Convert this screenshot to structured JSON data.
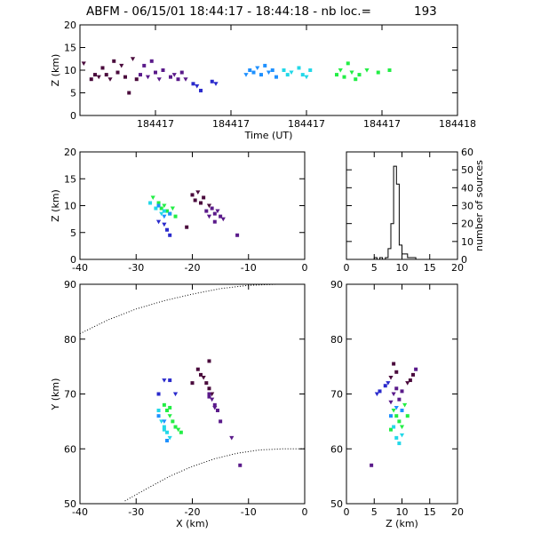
{
  "title": "ABFM - 06/15/01 18:44:17 - 18:44:18 - nb loc.=",
  "nb_loc": "193",
  "colors": {
    "dark_purple": "#4a0a3c",
    "purple": "#5a1a8a",
    "blue": "#2a2acc",
    "light_blue": "#1e90ff",
    "cyan": "#22d8e8",
    "green": "#22ee44",
    "outline": "#000000"
  },
  "chart_data": [
    {
      "id": "time-height",
      "type": "scatter",
      "xlabel": "Time (UT)",
      "ylabel": "Z (km)",
      "xlim": [
        0,
        1
      ],
      "ylim": [
        0,
        20
      ],
      "x_ticks": [
        0.2,
        0.4,
        0.6,
        0.8,
        1.0
      ],
      "x_tick_labels": [
        "184417",
        "184417",
        "184417",
        "184417",
        "184418"
      ],
      "y_ticks": [
        0,
        5,
        10,
        15,
        20
      ],
      "y_tick_labels": [
        "0",
        "5",
        "10",
        "15",
        "20"
      ],
      "series": [
        {
          "color": "#4a0a3c",
          "points": [
            [
              0.01,
              11.5
            ],
            [
              0.03,
              8
            ],
            [
              0.04,
              9
            ],
            [
              0.05,
              8.5
            ],
            [
              0.06,
              10.5
            ],
            [
              0.07,
              9
            ],
            [
              0.08,
              8
            ],
            [
              0.09,
              12
            ],
            [
              0.1,
              9.5
            ],
            [
              0.11,
              11
            ],
            [
              0.12,
              8.5
            ],
            [
              0.13,
              5
            ],
            [
              0.14,
              12.5
            ],
            [
              0.15,
              8
            ]
          ]
        },
        {
          "color": "#5a1a8a",
          "points": [
            [
              0.16,
              9
            ],
            [
              0.17,
              11
            ],
            [
              0.18,
              8.5
            ],
            [
              0.19,
              12
            ],
            [
              0.2,
              9.5
            ],
            [
              0.21,
              8
            ],
            [
              0.22,
              10
            ],
            [
              0.24,
              8.5
            ],
            [
              0.25,
              9
            ],
            [
              0.26,
              8
            ],
            [
              0.27,
              9.5
            ],
            [
              0.28,
              8
            ]
          ]
        },
        {
          "color": "#2a2acc",
          "points": [
            [
              0.3,
              7
            ],
            [
              0.31,
              6.5
            ],
            [
              0.32,
              5.5
            ],
            [
              0.35,
              7.5
            ],
            [
              0.36,
              7
            ]
          ]
        },
        {
          "color": "#1e90ff",
          "points": [
            [
              0.44,
              9
            ],
            [
              0.45,
              10
            ],
            [
              0.46,
              9.5
            ],
            [
              0.47,
              10.5
            ],
            [
              0.48,
              9
            ],
            [
              0.49,
              11
            ],
            [
              0.5,
              9.5
            ],
            [
              0.51,
              10
            ],
            [
              0.52,
              8.5
            ]
          ]
        },
        {
          "color": "#22d8e8",
          "points": [
            [
              0.54,
              10
            ],
            [
              0.55,
              9
            ],
            [
              0.56,
              9.5
            ],
            [
              0.58,
              10.5
            ],
            [
              0.59,
              9
            ],
            [
              0.6,
              8.5
            ],
            [
              0.61,
              10
            ]
          ]
        },
        {
          "color": "#22ee44",
          "points": [
            [
              0.68,
              9
            ],
            [
              0.69,
              10
            ],
            [
              0.7,
              8.5
            ],
            [
              0.71,
              11.5
            ],
            [
              0.72,
              9.5
            ],
            [
              0.73,
              8
            ],
            [
              0.74,
              9
            ],
            [
              0.76,
              10
            ],
            [
              0.79,
              9.5
            ],
            [
              0.82,
              10
            ]
          ]
        }
      ]
    },
    {
      "id": "x-z",
      "type": "scatter",
      "xlabel": "",
      "ylabel": "Z (km)",
      "xlim": [
        -40,
        0
      ],
      "ylim": [
        0,
        20
      ],
      "x_ticks": [
        -40,
        -30,
        -20,
        -10,
        0
      ],
      "x_tick_labels": [
        "-40",
        "-30",
        "-20",
        "-10",
        "0"
      ],
      "y_ticks": [
        0,
        5,
        10,
        15,
        20
      ],
      "y_tick_labels": [
        "0",
        "5",
        "10",
        "15",
        "20"
      ],
      "series": [
        {
          "color": "#22ee44",
          "points": [
            [
              -27,
              11.5
            ],
            [
              -26,
              10.5
            ],
            [
              -25.5,
              9.5
            ],
            [
              -25,
              10
            ],
            [
              -24.5,
              9
            ],
            [
              -24,
              8.5
            ],
            [
              -23.5,
              9.5
            ],
            [
              -23,
              8
            ]
          ]
        },
        {
          "color": "#22d8e8",
          "points": [
            [
              -27.5,
              10.5
            ],
            [
              -26.5,
              9.5
            ],
            [
              -25.5,
              8.5
            ],
            [
              -25,
              9
            ]
          ]
        },
        {
          "color": "#1e90ff",
          "points": [
            [
              -26,
              10
            ],
            [
              -25,
              8
            ],
            [
              -24,
              8.5
            ]
          ]
        },
        {
          "color": "#2a2acc",
          "points": [
            [
              -25,
              6.5
            ],
            [
              -24.5,
              5.5
            ],
            [
              -24,
              4.5
            ],
            [
              -26,
              7
            ]
          ]
        },
        {
          "color": "#4a0a3c",
          "points": [
            [
              -20,
              12
            ],
            [
              -19.5,
              11
            ],
            [
              -19,
              12.5
            ],
            [
              -18.5,
              10.5
            ],
            [
              -18,
              11.5
            ],
            [
              -17,
              10
            ],
            [
              -21,
              6
            ]
          ]
        },
        {
          "color": "#5a1a8a",
          "points": [
            [
              -17.5,
              9
            ],
            [
              -17,
              8
            ],
            [
              -16.5,
              9.5
            ],
            [
              -16,
              8.5
            ],
            [
              -15.5,
              9
            ],
            [
              -15,
              8
            ],
            [
              -16,
              7
            ],
            [
              -14.5,
              7.5
            ],
            [
              -12,
              4.5
            ]
          ]
        }
      ]
    },
    {
      "id": "z-histogram",
      "type": "bar",
      "xlabel": "",
      "ylabel": "number of sources",
      "xlim": [
        0,
        20
      ],
      "ylim": [
        0,
        60
      ],
      "x_ticks": [
        0,
        5,
        10,
        15,
        20
      ],
      "x_tick_labels": [
        "0",
        "5",
        "10",
        "15",
        "20"
      ],
      "y_ticks": [
        0,
        10,
        20,
        30,
        40,
        50,
        60
      ],
      "y_tick_labels": [
        "0",
        "10",
        "20",
        "30",
        "40",
        "50",
        "60"
      ],
      "bin_edges": [
        0,
        0.5,
        1,
        1.5,
        2,
        2.5,
        3,
        3.5,
        4,
        4.5,
        5,
        5.5,
        6,
        6.5,
        7,
        7.5,
        8,
        8.5,
        9,
        9.5,
        10,
        10.5,
        11,
        11.5,
        12,
        12.5,
        13,
        13.5,
        14,
        14.5,
        15,
        15.5,
        16,
        16.5,
        17,
        17.5,
        18,
        18.5,
        19,
        19.5,
        20
      ],
      "values": [
        0,
        0,
        0,
        0,
        0,
        0,
        0,
        0,
        0,
        0,
        1,
        0,
        1,
        0,
        1,
        6,
        20,
        52,
        42,
        8,
        3,
        3,
        1,
        1,
        1,
        0,
        0,
        0,
        0,
        0,
        0,
        0,
        0,
        0,
        0,
        0,
        0,
        0,
        0,
        0
      ]
    },
    {
      "id": "x-y",
      "type": "scatter",
      "xlabel": "X (km)",
      "ylabel": "Y (km)",
      "xlim": [
        -40,
        0
      ],
      "ylim": [
        50,
        90
      ],
      "x_ticks": [
        -40,
        -30,
        -20,
        -10,
        0
      ],
      "x_tick_labels": [
        "-40",
        "-30",
        "-20",
        "-10",
        "0"
      ],
      "y_ticks": [
        50,
        60,
        70,
        80,
        90
      ],
      "y_tick_labels": [
        "50",
        "60",
        "70",
        "80",
        "90"
      ],
      "series": [
        {
          "color": "#2a2acc",
          "points": [
            [
              -25,
              72.5
            ],
            [
              -24,
              72.5
            ],
            [
              -26,
              70
            ],
            [
              -23,
              70
            ]
          ]
        },
        {
          "color": "#22ee44",
          "points": [
            [
              -25,
              68
            ],
            [
              -24.5,
              67
            ],
            [
              -24,
              66
            ],
            [
              -23.5,
              65
            ],
            [
              -23,
              64
            ],
            [
              -22.5,
              63.5
            ],
            [
              -22,
              63
            ],
            [
              -24,
              67.5
            ]
          ]
        },
        {
          "color": "#22d8e8",
          "points": [
            [
              -26,
              67
            ],
            [
              -25.5,
              65
            ],
            [
              -25,
              64
            ],
            [
              -24.5,
              63
            ],
            [
              -24,
              62
            ],
            [
              -25,
              63.5
            ]
          ]
        },
        {
          "color": "#1e90ff",
          "points": [
            [
              -25,
              65
            ],
            [
              -24.5,
              61.5
            ],
            [
              -26,
              66
            ]
          ]
        },
        {
          "color": "#4a0a3c",
          "points": [
            [
              -19,
              74.5
            ],
            [
              -18.5,
              73.5
            ],
            [
              -18,
              73
            ],
            [
              -17.5,
              72
            ],
            [
              -17,
              71
            ],
            [
              -16.5,
              70
            ],
            [
              -20,
              72
            ],
            [
              -17,
              76
            ]
          ]
        },
        {
          "color": "#5a1a8a",
          "points": [
            [
              -17,
              70
            ],
            [
              -16.5,
              69
            ],
            [
              -16,
              68
            ],
            [
              -15.5,
              67
            ],
            [
              -16,
              67.5
            ],
            [
              -17,
              69.5
            ],
            [
              -15,
              65
            ],
            [
              -13,
              62
            ],
            [
              -11.5,
              57
            ]
          ]
        }
      ],
      "reference_curves": [
        {
          "points": [
            [
              -40,
              81
            ],
            [
              -35,
              83.5
            ],
            [
              -30,
              85.5
            ],
            [
              -25,
              87
            ],
            [
              -20,
              88.2
            ],
            [
              -15,
              89.2
            ],
            [
              -10,
              89.8
            ],
            [
              -5,
              90
            ]
          ]
        },
        {
          "points": [
            [
              -32,
              50.5
            ],
            [
              -28,
              52.8
            ],
            [
              -24,
              55
            ],
            [
              -20,
              56.8
            ],
            [
              -16,
              58.2
            ],
            [
              -12,
              59.2
            ],
            [
              -8,
              59.8
            ],
            [
              -4,
              60
            ],
            [
              0,
              60
            ]
          ]
        }
      ]
    },
    {
      "id": "z-y",
      "type": "scatter",
      "xlabel": "Z (km)",
      "ylabel": "",
      "xlim": [
        0,
        20
      ],
      "ylim": [
        50,
        90
      ],
      "x_ticks": [
        0,
        5,
        10,
        15,
        20
      ],
      "x_tick_labels": [
        "0",
        "5",
        "10",
        "15",
        "20"
      ],
      "y_ticks": [
        50,
        60,
        70,
        80,
        90
      ],
      "y_tick_labels": [
        "50",
        "60",
        "70",
        "80",
        "90"
      ],
      "series": [
        {
          "color": "#2a2acc",
          "points": [
            [
              5.5,
              70
            ],
            [
              7,
              71.5
            ],
            [
              6,
              70.5
            ],
            [
              7.5,
              72
            ]
          ]
        },
        {
          "color": "#4a0a3c",
          "points": [
            [
              8.5,
              75.5
            ],
            [
              9,
              74
            ],
            [
              11,
              72
            ],
            [
              12,
              73.5
            ],
            [
              11.5,
              72.5
            ],
            [
              8,
              73
            ]
          ]
        },
        {
          "color": "#5a1a8a",
          "points": [
            [
              9,
              71
            ],
            [
              8.5,
              70
            ],
            [
              9.5,
              69
            ],
            [
              10,
              70.5
            ],
            [
              8,
              68.5
            ],
            [
              12.5,
              74.5
            ],
            [
              4.5,
              57
            ]
          ]
        },
        {
          "color": "#22ee44",
          "points": [
            [
              8.5,
              67
            ],
            [
              9,
              66
            ],
            [
              9.5,
              65
            ],
            [
              10,
              64
            ],
            [
              8,
              63.5
            ],
            [
              11,
              66
            ],
            [
              10.5,
              68
            ]
          ]
        },
        {
          "color": "#22d8e8",
          "points": [
            [
              9,
              62
            ],
            [
              8.5,
              64
            ],
            [
              10,
              62.5
            ],
            [
              9.5,
              61
            ]
          ]
        },
        {
          "color": "#1e90ff",
          "points": [
            [
              8,
              66
            ],
            [
              9,
              67.5
            ],
            [
              10,
              67
            ]
          ]
        }
      ]
    }
  ]
}
